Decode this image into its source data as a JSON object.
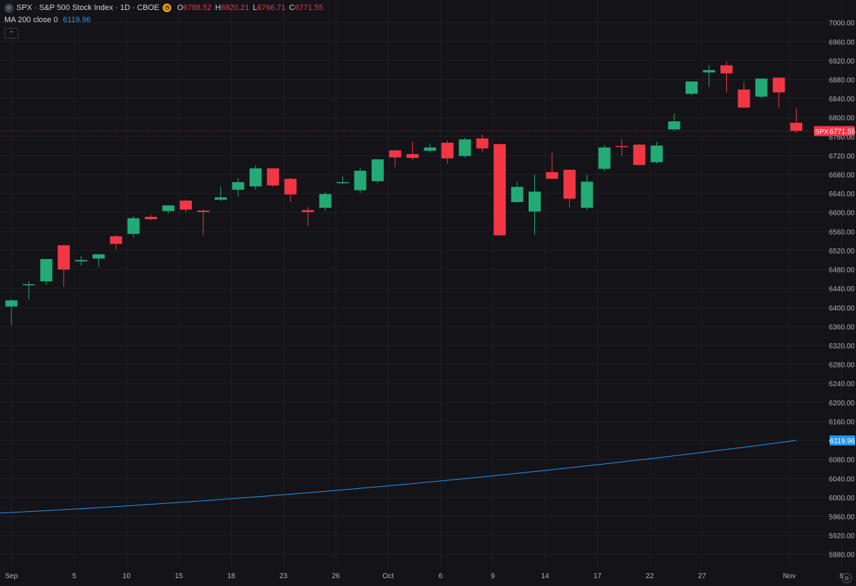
{
  "legend": {
    "symbol": "SPX · S&P 500 Stock Index · 1D · CBOE",
    "o_key": "O",
    "open": "6788.52",
    "h_key": "H",
    "high": "6820.21",
    "l_key": "L",
    "low": "6766.71",
    "c_key": "C",
    "close": "6771.55",
    "ma_label": "MA 200 close 0",
    "ma_value": "6119.96",
    "symbol_icon": "eye-off-icon",
    "clock_icon": "clock-icon",
    "collapse_icon": "chevron-up-icon"
  },
  "colors": {
    "background": "#131318",
    "grid": "#1f2029",
    "up": "#22ab75",
    "down": "#f23645",
    "ma": "#2196f3",
    "axis_text": "#b2b5be"
  },
  "chart_data": {
    "type": "candlestick",
    "symbol": "SPX",
    "ylim": [
      5860,
      7010
    ],
    "y_ticks": [
      7000,
      6960,
      6920,
      6880,
      6840,
      6800,
      6760,
      6720,
      6680,
      6640,
      6600,
      6560,
      6520,
      6480,
      6440,
      6400,
      6360,
      6320,
      6280,
      6240,
      6200,
      6160,
      6120,
      6080,
      6040,
      6000,
      5960,
      5920,
      5880
    ],
    "x_tick_labels": [
      {
        "label": "Sep",
        "idx": 0
      },
      {
        "label": "5",
        "idx": 3.6
      },
      {
        "label": "10",
        "idx": 6.6
      },
      {
        "label": "15",
        "idx": 9.6
      },
      {
        "label": "18",
        "idx": 12.6
      },
      {
        "label": "23",
        "idx": 15.6
      },
      {
        "label": "26",
        "idx": 18.6
      },
      {
        "label": "Oct",
        "idx": 21.6
      },
      {
        "label": "6",
        "idx": 24.6
      },
      {
        "label": "9",
        "idx": 27.6
      },
      {
        "label": "14",
        "idx": 30.6
      },
      {
        "label": "17",
        "idx": 33.6
      },
      {
        "label": "22",
        "idx": 36.6
      },
      {
        "label": "27",
        "idx": 39.6
      },
      {
        "label": "Nov",
        "idx": 44.6
      },
      {
        "label": "6",
        "idx": 47.6
      }
    ],
    "candles": [
      {
        "o": 6402,
        "h": 6418,
        "l": 6362,
        "c": 6415
      },
      {
        "o": 6447,
        "h": 6455,
        "l": 6417,
        "c": 6449
      },
      {
        "o": 6455,
        "h": 6502,
        "l": 6448,
        "c": 6502
      },
      {
        "o": 6531,
        "h": 6532,
        "l": 6444,
        "c": 6480
      },
      {
        "o": 6497,
        "h": 6508,
        "l": 6488,
        "c": 6500
      },
      {
        "o": 6503,
        "h": 6513,
        "l": 6486,
        "c": 6512
      },
      {
        "o": 6550,
        "h": 6553,
        "l": 6522,
        "c": 6534
      },
      {
        "o": 6555,
        "h": 6593,
        "l": 6548,
        "c": 6588
      },
      {
        "o": 6591,
        "h": 6595,
        "l": 6583,
        "c": 6586
      },
      {
        "o": 6603,
        "h": 6614,
        "l": 6598,
        "c": 6615
      },
      {
        "o": 6625,
        "h": 6627,
        "l": 6600,
        "c": 6606
      },
      {
        "o": 6604,
        "h": 6607,
        "l": 6552,
        "c": 6601
      },
      {
        "o": 6627,
        "h": 6655,
        "l": 6624,
        "c": 6632
      },
      {
        "o": 6648,
        "h": 6672,
        "l": 6633,
        "c": 6664
      },
      {
        "o": 6655,
        "h": 6699,
        "l": 6648,
        "c": 6693
      },
      {
        "o": 6693,
        "h": 6693,
        "l": 6654,
        "c": 6657
      },
      {
        "o": 6671,
        "h": 6673,
        "l": 6622,
        "c": 6638
      },
      {
        "o": 6605,
        "h": 6612,
        "l": 6572,
        "c": 6601
      },
      {
        "o": 6610,
        "h": 6643,
        "l": 6604,
        "c": 6639
      },
      {
        "o": 6663,
        "h": 6676,
        "l": 6660,
        "c": 6664
      },
      {
        "o": 6647,
        "h": 6694,
        "l": 6641,
        "c": 6688
      },
      {
        "o": 6666,
        "h": 6712,
        "l": 6662,
        "c": 6712
      },
      {
        "o": 6731,
        "h": 6732,
        "l": 6696,
        "c": 6716
      },
      {
        "o": 6723,
        "h": 6750,
        "l": 6711,
        "c": 6715
      },
      {
        "o": 6730,
        "h": 6745,
        "l": 6726,
        "c": 6737
      },
      {
        "o": 6747,
        "h": 6752,
        "l": 6703,
        "c": 6714
      },
      {
        "o": 6719,
        "h": 6757,
        "l": 6716,
        "c": 6754
      },
      {
        "o": 6756,
        "h": 6765,
        "l": 6727,
        "c": 6735
      },
      {
        "o": 6744,
        "h": 6745,
        "l": 6551,
        "c": 6552
      },
      {
        "o": 6622,
        "h": 6665,
        "l": 6621,
        "c": 6654
      },
      {
        "o": 6602,
        "h": 6680,
        "l": 6553,
        "c": 6644
      },
      {
        "o": 6685,
        "h": 6726,
        "l": 6672,
        "c": 6671
      },
      {
        "o": 6690,
        "h": 6688,
        "l": 6611,
        "c": 6629
      },
      {
        "o": 6610,
        "h": 6680,
        "l": 6605,
        "c": 6665
      },
      {
        "o": 6692,
        "h": 6742,
        "l": 6687,
        "c": 6737
      },
      {
        "o": 6740,
        "h": 6755,
        "l": 6718,
        "c": 6738
      },
      {
        "o": 6743,
        "h": 6744,
        "l": 6703,
        "c": 6700
      },
      {
        "o": 6706,
        "h": 6749,
        "l": 6703,
        "c": 6741
      },
      {
        "o": 6775,
        "h": 6808,
        "l": 6772,
        "c": 6792
      },
      {
        "o": 6850,
        "h": 6876,
        "l": 6847,
        "c": 6876
      },
      {
        "o": 6895,
        "h": 6911,
        "l": 6865,
        "c": 6900
      },
      {
        "o": 6910,
        "h": 6918,
        "l": 6853,
        "c": 6893
      },
      {
        "o": 6859,
        "h": 6875,
        "l": 6820,
        "c": 6821
      },
      {
        "o": 6844,
        "h": 6880,
        "l": 6841,
        "c": 6882
      },
      {
        "o": 6884,
        "h": 6885,
        "l": 6820,
        "c": 6853
      },
      {
        "o": 6789,
        "h": 6820,
        "l": 6767,
        "c": 6772
      }
    ],
    "ma200": {
      "name": "MA 200 close 0",
      "start": 5967,
      "end": 6120
    },
    "last_price_label": {
      "symbol": "SPX",
      "value": "6771.55"
    },
    "ma_price_label": {
      "value": "6119.96"
    },
    "grid": true
  },
  "settings_icon": "gear-icon"
}
